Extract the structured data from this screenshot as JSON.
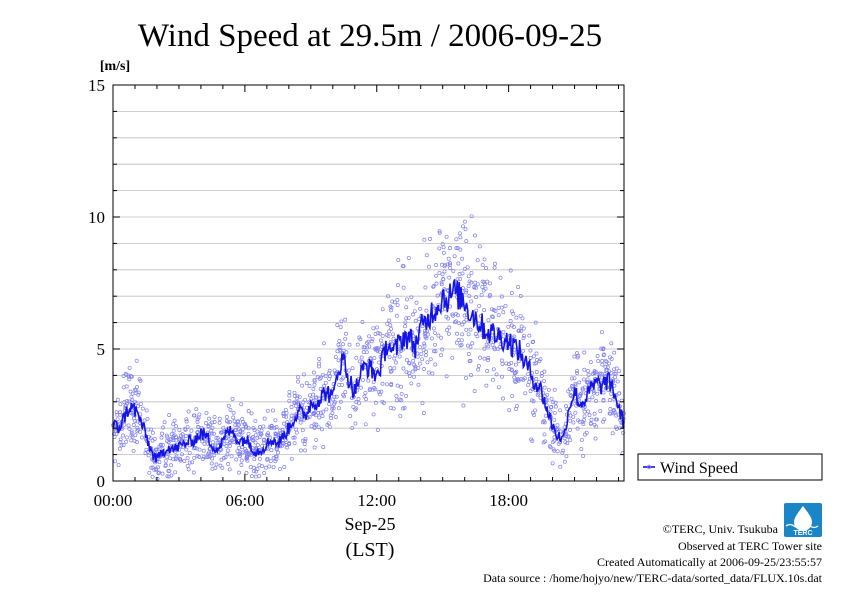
{
  "chart_data": {
    "type": "scatter",
    "title": "Wind Speed at 29.5m / 2006-09-25",
    "ylabel": "[m/s]",
    "xlabel_date": "Sep-25",
    "xlabel_tz": "(LST)",
    "x_unit": "hour",
    "xlim": [
      0,
      23.25
    ],
    "ylim": [
      0,
      15
    ],
    "x_ticks": [
      {
        "value": 0,
        "label": "00:00"
      },
      {
        "value": 6,
        "label": "06:00"
      },
      {
        "value": 12,
        "label": "12:00"
      },
      {
        "value": 18,
        "label": "18:00"
      }
    ],
    "y_ticks": [
      {
        "value": 0,
        "label": "0"
      },
      {
        "value": 5,
        "label": "5"
      },
      {
        "value": 10,
        "label": "10"
      },
      {
        "value": 15,
        "label": "15"
      }
    ],
    "grid": true,
    "legend": {
      "position": "right",
      "label": "Wind Speed"
    },
    "colors": {
      "line": "#1414e6",
      "points": "#8080f0"
    },
    "series": [
      {
        "name": "Wind Speed",
        "x": [
          0.0,
          0.25,
          0.5,
          0.75,
          1.0,
          1.25,
          1.5,
          1.75,
          2.0,
          2.25,
          2.5,
          2.75,
          3.0,
          3.25,
          3.5,
          3.75,
          4.0,
          4.25,
          4.5,
          4.75,
          5.0,
          5.25,
          5.5,
          5.75,
          6.0,
          6.25,
          6.5,
          6.75,
          7.0,
          7.25,
          7.5,
          7.75,
          8.0,
          8.25,
          8.5,
          8.75,
          9.0,
          9.25,
          9.5,
          9.75,
          10.0,
          10.25,
          10.5,
          10.75,
          11.0,
          11.25,
          11.5,
          11.75,
          12.0,
          12.25,
          12.5,
          12.75,
          13.0,
          13.25,
          13.5,
          13.75,
          14.0,
          14.25,
          14.5,
          14.75,
          15.0,
          15.25,
          15.5,
          15.75,
          16.0,
          16.25,
          16.5,
          16.75,
          17.0,
          17.25,
          17.5,
          17.75,
          18.0,
          18.25,
          18.5,
          18.75,
          19.0,
          19.25,
          19.5,
          19.75,
          20.0,
          20.25,
          20.5,
          20.75,
          21.0,
          21.25,
          21.5,
          21.75,
          22.0,
          22.25,
          22.5,
          22.75,
          23.0,
          23.25
        ],
        "y": [
          2.1,
          2.0,
          2.4,
          2.8,
          2.7,
          2.3,
          1.7,
          1.1,
          0.8,
          1.1,
          1.3,
          1.2,
          1.3,
          1.4,
          1.5,
          1.6,
          1.8,
          1.7,
          1.4,
          1.2,
          1.5,
          1.9,
          1.8,
          1.5,
          1.6,
          1.4,
          1.1,
          1.2,
          1.4,
          1.6,
          1.4,
          1.7,
          2.0,
          2.4,
          2.6,
          2.5,
          2.9,
          3.0,
          3.2,
          3.4,
          3.1,
          4.3,
          4.6,
          3.8,
          3.4,
          4.0,
          4.4,
          4.2,
          4.0,
          4.5,
          5.3,
          4.8,
          5.2,
          5.5,
          5.4,
          5.1,
          5.8,
          6.0,
          6.4,
          6.6,
          7.0,
          6.9,
          7.2,
          7.0,
          6.8,
          6.4,
          6.2,
          5.9,
          5.7,
          5.6,
          5.5,
          5.4,
          5.3,
          5.1,
          4.9,
          4.5,
          4.1,
          3.7,
          3.4,
          2.7,
          2.1,
          1.7,
          1.6,
          2.8,
          3.4,
          2.9,
          3.1,
          3.5,
          3.7,
          3.6,
          3.8,
          3.5,
          2.8,
          2.1
        ]
      }
    ]
  },
  "footer": {
    "credit": "©TERC, Univ. Tsukuba",
    "site": "Observed at TERC Tower site",
    "created": "Created Automatically at 2006-09-25/23:55:57",
    "source": "Data source : /home/hojyo/new/TERC-data/sorted_data/FLUX.10s.dat"
  },
  "logo": {
    "text": "TERC"
  }
}
